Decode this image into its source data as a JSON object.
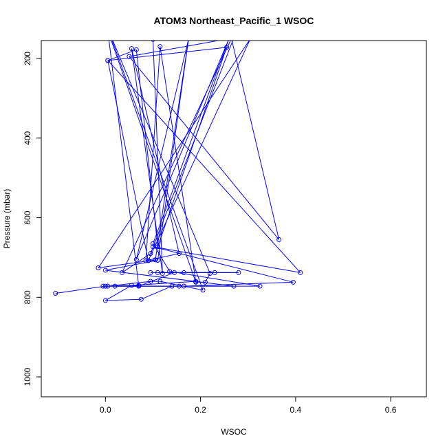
{
  "chart_data": {
    "type": "line",
    "title": "ATOM3 Northeast_Pacific_1 WSOC",
    "xlabel": "WSOC",
    "ylabel": "Pressure (mbar)",
    "xlim": [
      -0.135,
      0.675
    ],
    "ylim": [
      1050,
      155
    ],
    "y_reversed": true,
    "x_ticks": [
      0.0,
      0.2,
      0.4,
      0.6
    ],
    "x_tick_labels": [
      "0.0",
      "0.2",
      "0.4",
      "0.6"
    ],
    "y_ticks": [
      200,
      400,
      600,
      800,
      1000
    ],
    "y_tick_labels": [
      "200",
      "400",
      "600",
      "800",
      "1000"
    ],
    "grid": false,
    "legend": "none",
    "line_color": "#0000ff",
    "marker": "open-circle",
    "series": [
      {
        "x": [
          -0.105,
          0.0,
          0.07,
          0.02,
          0.14,
          0.075,
          0.0,
          0.055,
          0.19,
          0.115,
          0.085,
          0.155,
          0.055,
          0.12,
          0.1,
          0.265,
          0.035,
          0.095,
          0.27,
          0.05,
          0.365,
          0.265,
          0.175,
          0.11,
          0.0,
          0.27,
          0.165,
          0.395,
          0.1,
          0.41,
          0.005,
          0.255,
          0.11,
          0.065,
          0.005,
          0.09,
          0.305,
          -0.015,
          0.105,
          0.175,
          0.065,
          0.26,
          0.1,
          0.135,
          0.325,
          -0.005,
          0.155,
          0.005,
          0.095,
          0.115,
          0.205,
          0.005,
          0.22,
          0.21,
          0.19,
          0.005,
          0.07,
          0.145,
          0.28,
          0.11,
          0.165,
          0.23,
          0.095
        ],
        "y": [
          790,
          772,
          770,
          772,
          772,
          805,
          808,
          770,
          760,
          170,
          708,
          690,
          175,
          740,
          152,
          150,
          738,
          690,
          148,
          195,
          655,
          150,
          150,
          707,
          732,
          772,
          772,
          762,
          673,
          738,
          205,
          172,
          673,
          178,
          205,
          708,
          150,
          726,
          706,
          150,
          705,
          150,
          665,
          735,
          772,
          772,
          772,
          772,
          760,
          760,
          782,
          125,
          740,
          762,
          762,
          130,
          772,
          738,
          738,
          738,
          738,
          738,
          738
        ]
      }
    ]
  }
}
